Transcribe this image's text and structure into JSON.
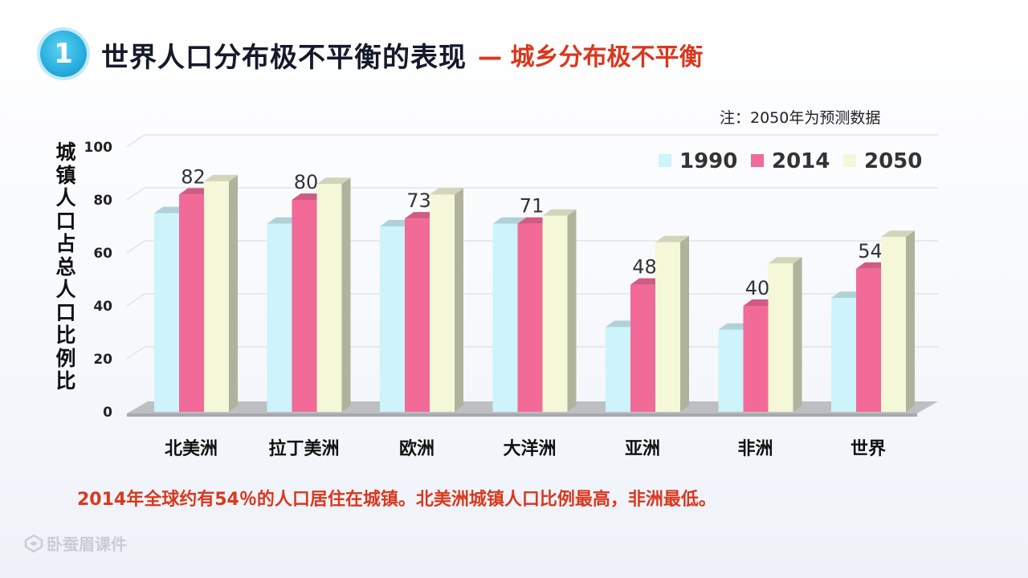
{
  "header": {
    "badge_number": "1",
    "title": "世界人口分布极不平衡的表现",
    "subtitle": "— 城乡分布极不平衡"
  },
  "note": "注：2050年为预测数据",
  "conclusion": "2014年全球约有54％的人口居住在城镇。北美洲城镇人口比例最高，非洲最低。",
  "watermark": {
    "text": "卧蚕眉课件",
    "icon": "brand-logo-icon"
  },
  "colors": {
    "s1990": "#cdf3fb",
    "s2014": "#f26a98",
    "s2050": "#f4f8d8",
    "title": "#15192a",
    "accent": "#d9381e"
  },
  "chart_data": {
    "type": "bar",
    "ylabel": "城镇人口占总人口比例比",
    "xlabel": "",
    "ylim": [
      0,
      100
    ],
    "yticks": [
      0,
      20,
      40,
      60,
      80,
      100
    ],
    "categories": [
      "北美洲",
      "拉丁美洲",
      "欧洲",
      "大洋洲",
      "亚洲",
      "非洲",
      "世界"
    ],
    "series": [
      {
        "name": "1990",
        "values": [
          75,
          71,
          70,
          71,
          32,
          31,
          43
        ],
        "color": "#cdf3fb"
      },
      {
        "name": "2014",
        "values": [
          82,
          80,
          73,
          71,
          48,
          40,
          54
        ],
        "color": "#f26a98",
        "labels": true
      },
      {
        "name": "2050",
        "values": [
          87,
          86,
          82,
          74,
          64,
          56,
          66
        ],
        "color": "#f4f8d8"
      }
    ],
    "legend_position": "top-right",
    "grid": true,
    "style": "3d-clustered-column"
  }
}
